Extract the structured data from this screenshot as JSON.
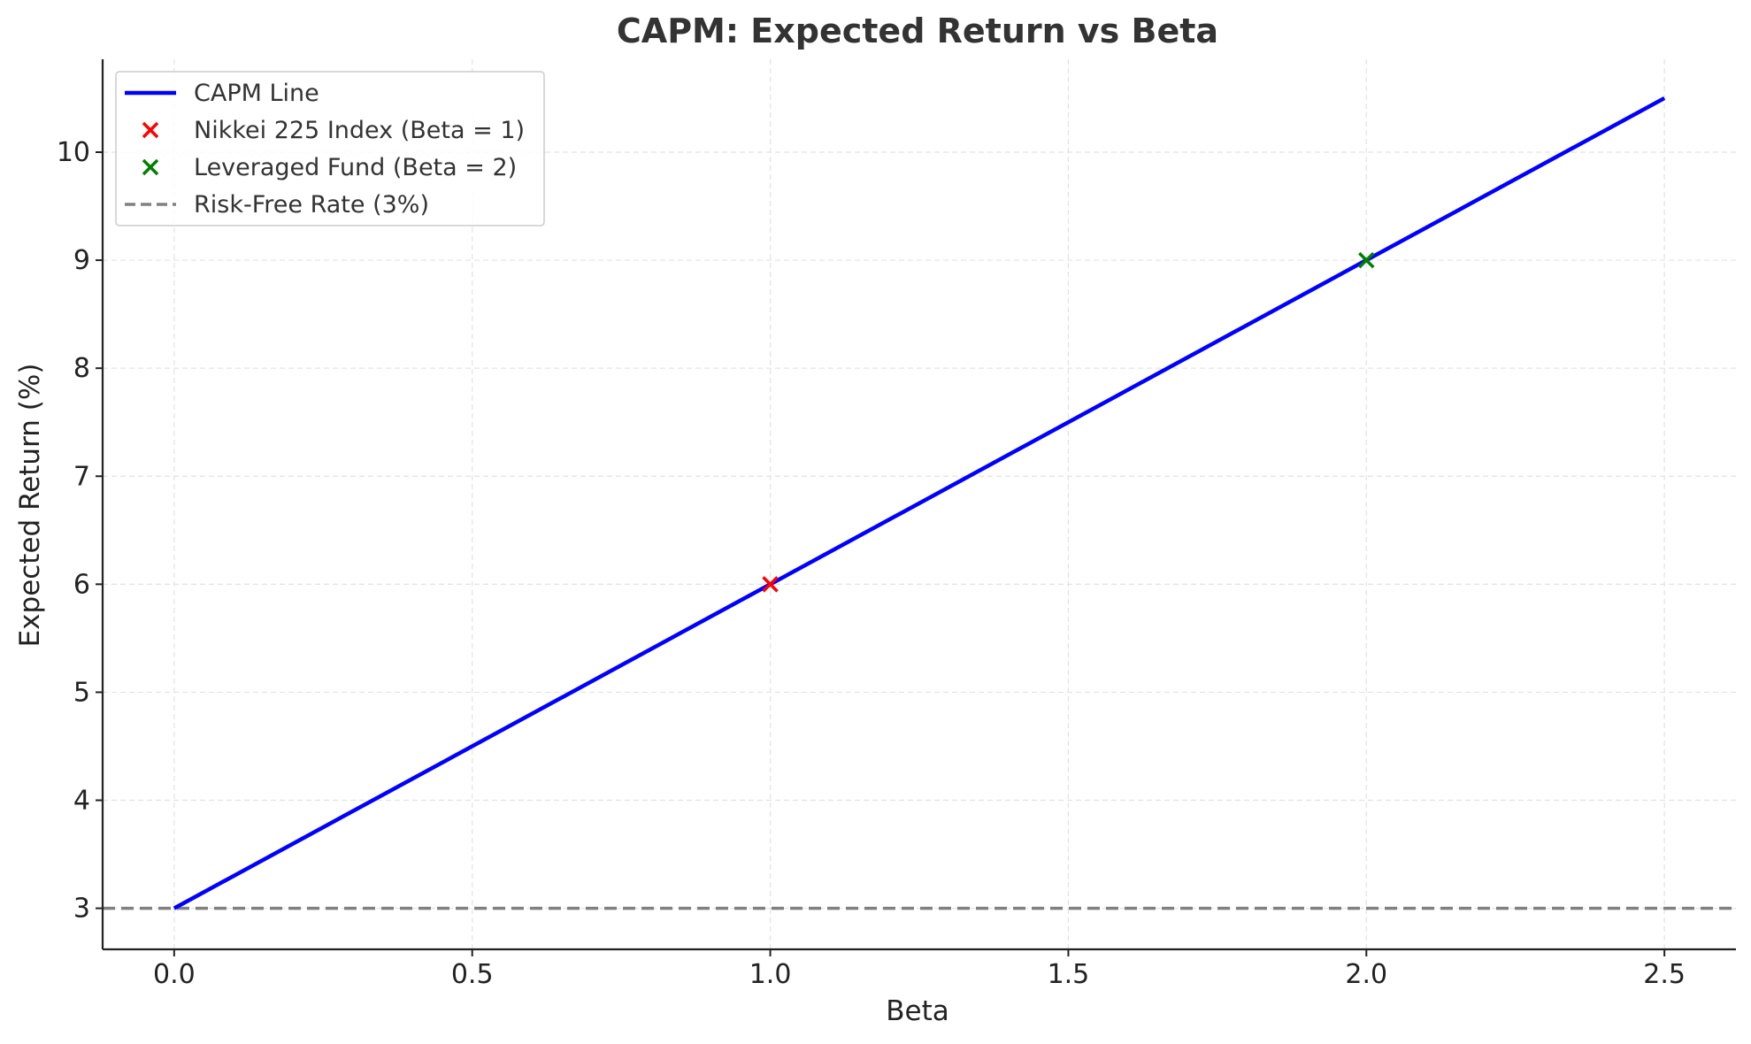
{
  "chart_data": {
    "type": "line",
    "title": "CAPM: Expected Return vs Beta",
    "xlabel": "Beta",
    "ylabel": "Expected Return (%)",
    "xlim": [
      -0.12,
      2.62
    ],
    "ylim": [
      2.62,
      10.86
    ],
    "x_ticks": [
      0.0,
      0.5,
      1.0,
      1.5,
      2.0,
      2.5
    ],
    "x_tick_labels": [
      "0.0",
      "0.5",
      "1.0",
      "1.5",
      "2.0",
      "2.5"
    ],
    "y_ticks": [
      3,
      4,
      5,
      6,
      7,
      8,
      9,
      10
    ],
    "y_tick_labels": [
      "3",
      "4",
      "5",
      "6",
      "7",
      "8",
      "9",
      "10"
    ],
    "grid": true,
    "legend_position": "top-left",
    "series": [
      {
        "name": "CAPM Line",
        "kind": "line",
        "color": "#0000ff",
        "x": [
          0.0,
          2.5
        ],
        "y": [
          3.0,
          10.5
        ]
      },
      {
        "name": "Nikkei 225 Index (Beta = 1)",
        "kind": "scatter",
        "marker": "x",
        "color": "#ff0000",
        "x": [
          1.0
        ],
        "y": [
          6.0
        ]
      },
      {
        "name": "Leveraged Fund (Beta = 2)",
        "kind": "scatter",
        "marker": "x",
        "color": "#008000",
        "x": [
          2.0
        ],
        "y": [
          9.0
        ]
      },
      {
        "name": "Risk-Free Rate (3%)",
        "kind": "hline",
        "style": "dashed",
        "color": "#808080",
        "y": 3.0
      }
    ]
  }
}
